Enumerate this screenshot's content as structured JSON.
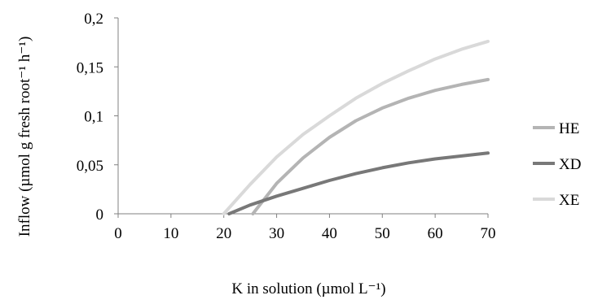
{
  "chart_data": {
    "type": "line",
    "xlabel": "K in solution (µmol L⁻¹)",
    "ylabel": "Inflow (µmol g fresh root⁻¹ h⁻¹)",
    "xlim": [
      0,
      70
    ],
    "ylim": [
      0,
      0.2
    ],
    "x_ticks": [
      0,
      10,
      20,
      30,
      40,
      50,
      60,
      70
    ],
    "x_tick_labels": [
      "0",
      "10",
      "20",
      "30",
      "40",
      "50",
      "60",
      "70"
    ],
    "y_ticks": [
      0,
      0.05,
      0.1,
      0.15,
      0.2
    ],
    "y_tick_labels": [
      "0",
      "0,05",
      "0,1",
      "0,15",
      "0,2"
    ],
    "grid": false,
    "legend_position": "right",
    "series": [
      {
        "name": "HE",
        "color": "#b4b4b4",
        "x": [
          25.5,
          30,
          35,
          40,
          45,
          50,
          55,
          60,
          65,
          70
        ],
        "y": [
          0,
          0.031,
          0.057,
          0.078,
          0.095,
          0.108,
          0.118,
          0.126,
          0.132,
          0.137
        ]
      },
      {
        "name": "XD",
        "color": "#787878",
        "x": [
          21,
          25,
          30,
          35,
          40,
          45,
          50,
          55,
          60,
          65,
          70
        ],
        "y": [
          0,
          0.009,
          0.018,
          0.026,
          0.034,
          0.041,
          0.047,
          0.052,
          0.056,
          0.059,
          0.062
        ]
      },
      {
        "name": "XE",
        "color": "#d9d9d9",
        "x": [
          20,
          25,
          30,
          35,
          40,
          45,
          50,
          55,
          60,
          65,
          70
        ],
        "y": [
          0,
          0.03,
          0.058,
          0.081,
          0.1,
          0.118,
          0.133,
          0.146,
          0.158,
          0.168,
          0.176
        ]
      }
    ]
  }
}
